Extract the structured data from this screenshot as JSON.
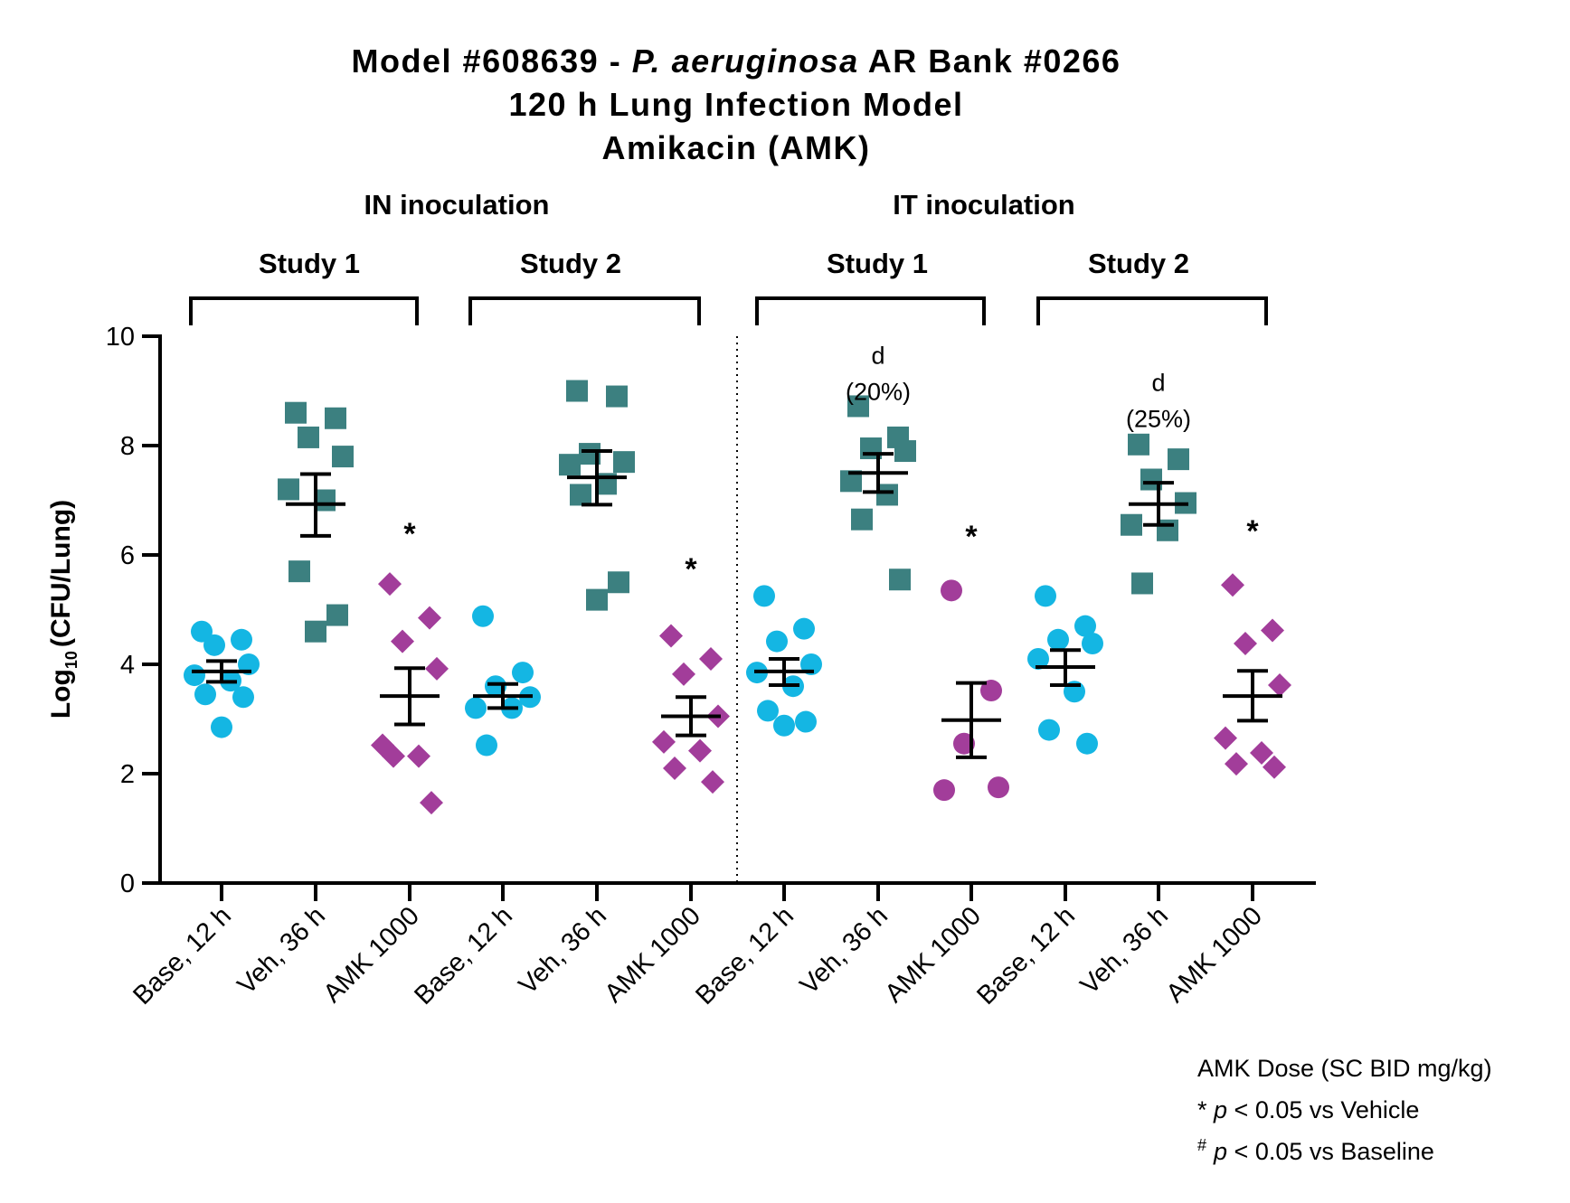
{
  "chart_data": {
    "type": "scatter",
    "title": [
      "Model #608639 - ",
      "P. aeruginosa",
      " AR Bank #0266"
    ],
    "subtitle_lines": [
      "120 h Lung Infection Model",
      "Amikacin (AMK)"
    ],
    "ylabel": "(CFU/Lung)",
    "ylabel_prefix": "Log",
    "ylabel_sub": "10",
    "ylim": [
      0,
      10
    ],
    "yticks": [
      "0",
      "2",
      "4",
      "6",
      "8",
      "10"
    ],
    "inoculation_groups": [
      "IN inoculation",
      "IT inoculation"
    ],
    "study_labels": [
      "Study 1",
      "Study 2",
      "Study 1",
      "Study 2"
    ],
    "categories": [
      "Base, 12 h",
      "Veh, 36 h",
      "AMK 1000",
      "Base, 12 h",
      "Veh, 36 h",
      "AMK 1000",
      "Base, 12 h",
      "Veh, 36 h",
      "AMK 1000",
      "Base, 12 h",
      "Veh, 36 h",
      "AMK 1000"
    ],
    "colors": {
      "base": "#14B6E3",
      "vehicle": "#3C8080",
      "amk": "#A23D9A"
    },
    "groups": [
      {
        "category": "Base, 12 h",
        "shape": "circle",
        "color": "base",
        "mean": 3.87,
        "error": [
          3.68,
          4.06
        ],
        "points": [
          4.6,
          4.35,
          4.45,
          4.0,
          3.8,
          3.7,
          3.45,
          3.4,
          2.85
        ]
      },
      {
        "category": "Veh, 36 h",
        "shape": "square",
        "color": "vehicle",
        "mean": 6.93,
        "error": [
          6.35,
          7.48
        ],
        "points": [
          8.5,
          8.6,
          8.15,
          7.8,
          7.2,
          7.0,
          5.7,
          4.9,
          4.6
        ]
      },
      {
        "category": "AMK 1000",
        "shape": "diamond",
        "color": "amk",
        "mean": 3.42,
        "error": [
          2.9,
          3.93
        ],
        "points": [
          5.47,
          4.85,
          4.42,
          3.92,
          2.52,
          2.32,
          2.32,
          1.47
        ]
      },
      {
        "category": "Base, 12 h",
        "shape": "circle",
        "color": "base",
        "mean": 3.42,
        "error": [
          3.2,
          3.64
        ],
        "points": [
          4.88,
          3.85,
          3.6,
          3.4,
          3.2,
          3.2,
          2.52
        ]
      },
      {
        "category": "Veh, 36 h",
        "shape": "square",
        "color": "vehicle",
        "mean": 7.42,
        "error": [
          6.92,
          7.9
        ],
        "points": [
          9.0,
          8.9,
          7.85,
          7.7,
          7.65,
          7.3,
          7.1,
          5.5,
          5.18
        ]
      },
      {
        "category": "AMK 1000",
        "shape": "diamond",
        "color": "amk",
        "mean": 3.05,
        "error": [
          2.7,
          3.4
        ],
        "points": [
          4.52,
          4.1,
          3.82,
          3.05,
          2.58,
          2.42,
          2.1,
          1.85
        ]
      },
      {
        "category": "Base, 12 h",
        "shape": "circle",
        "color": "base",
        "mean": 3.87,
        "error": [
          3.62,
          4.1
        ],
        "points": [
          5.25,
          4.65,
          4.42,
          4.0,
          3.85,
          3.6,
          3.15,
          2.95,
          2.88
        ]
      },
      {
        "category": "Veh, 36 h",
        "shape": "square",
        "color": "vehicle",
        "mean": 7.5,
        "error": [
          7.15,
          7.85
        ],
        "points": [
          8.72,
          8.15,
          7.95,
          7.9,
          7.35,
          7.1,
          6.65,
          5.55
        ]
      },
      {
        "category": "AMK 1000",
        "shape": "circle",
        "color": "amk",
        "mean": 2.98,
        "error": [
          2.3,
          3.66
        ],
        "points": [
          5.35,
          3.52,
          2.55,
          1.75,
          1.7
        ]
      },
      {
        "category": "Base, 12 h",
        "shape": "circle",
        "color": "base",
        "mean": 3.95,
        "error": [
          3.62,
          4.26
        ],
        "points": [
          5.25,
          4.7,
          4.45,
          4.38,
          4.1,
          3.5,
          2.8,
          2.55
        ]
      },
      {
        "category": "Veh, 36 h",
        "shape": "square",
        "color": "vehicle",
        "mean": 6.93,
        "error": [
          6.55,
          7.32
        ],
        "points": [
          8.02,
          7.75,
          7.38,
          6.95,
          6.55,
          6.45,
          5.48
        ]
      },
      {
        "category": "AMK 1000",
        "shape": "diamond",
        "color": "amk",
        "mean": 3.42,
        "error": [
          2.97,
          3.88
        ],
        "points": [
          5.45,
          4.62,
          4.38,
          3.62,
          2.65,
          2.38,
          2.18,
          2.12
        ]
      }
    ],
    "annotations": [
      {
        "group": 2,
        "text": "*",
        "y": 6.4
      },
      {
        "group": 5,
        "text": "*",
        "y": 5.75
      },
      {
        "group": 7,
        "text": "d",
        "line2": "(20%)",
        "y": 9.5
      },
      {
        "group": 8,
        "text": "*",
        "y": 6.35
      },
      {
        "group": 10,
        "text": "d",
        "line2": "(25%)",
        "y": 9.0
      },
      {
        "group": 11,
        "text": "*",
        "y": 6.45
      }
    ],
    "notes": [
      {
        "prefix": "",
        "italic": "",
        "text": "AMK Dose (SC BID mg/kg)"
      },
      {
        "prefix": "* ",
        "italic": "p",
        "text": " < 0.05 vs Vehicle"
      },
      {
        "prefix": "#",
        "italic": "p",
        "text": " < 0.05 vs Baseline"
      }
    ]
  }
}
